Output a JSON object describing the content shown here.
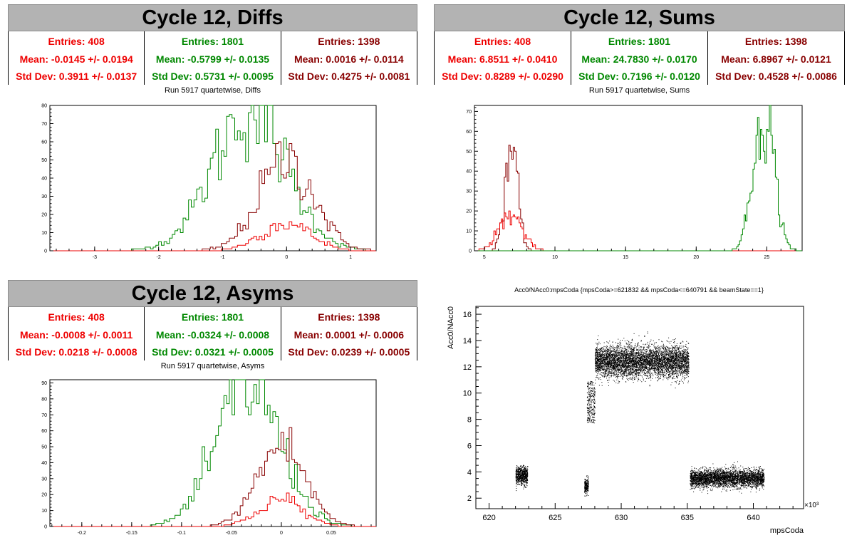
{
  "colors": {
    "red": "#ee0000",
    "green": "#008800",
    "darkred": "#880000",
    "title_bg": "#b3b3b3"
  },
  "panels": {
    "diffs": {
      "title": "Cycle 12, Diffs",
      "subtitle": "Run 5917 quartetwise, Diffs",
      "stats": [
        {
          "color": "red",
          "entries": "Entries: 408",
          "mean": "Mean: -0.0145 +/- 0.0194",
          "std": "Std Dev: 0.3911 +/- 0.0137"
        },
        {
          "color": "green",
          "entries": "Entries: 1801",
          "mean": "Mean: -0.5799 +/- 0.0135",
          "std": "Std Dev: 0.5731 +/- 0.0095"
        },
        {
          "color": "darkred",
          "entries": "Entries: 1398",
          "mean": "Mean: 0.0016 +/- 0.0114",
          "std": "Std Dev: 0.4275 +/- 0.0081"
        }
      ]
    },
    "sums": {
      "title": "Cycle 12, Sums",
      "subtitle": "Run 5917 quartetwise, Sums",
      "stats": [
        {
          "color": "red",
          "entries": "Entries: 408",
          "mean": "Mean: 6.8511 +/- 0.0410",
          "std": "Std Dev: 0.8289 +/- 0.0290"
        },
        {
          "color": "green",
          "entries": "Entries: 1801",
          "mean": "Mean: 24.7830 +/- 0.0170",
          "std": "Std Dev: 0.7196 +/- 0.0120"
        },
        {
          "color": "darkred",
          "entries": "Entries: 1398",
          "mean": "Mean: 6.8967 +/- 0.0121",
          "std": "Std Dev: 0.4528 +/- 0.0086"
        }
      ]
    },
    "asyms": {
      "title": "Cycle 12, Asyms",
      "subtitle": "Run 5917 quartetwise, Asyms",
      "stats": [
        {
          "color": "red",
          "entries": "Entries: 408",
          "mean": "Mean: -0.0008 +/- 0.0011",
          "std": "Std Dev: 0.0218 +/- 0.0008"
        },
        {
          "color": "green",
          "entries": "Entries: 1801",
          "mean": "Mean: -0.0324 +/- 0.0008",
          "std": "Std Dev: 0.0321 +/- 0.0005"
        },
        {
          "color": "darkred",
          "entries": "Entries: 1398",
          "mean": "Mean: 0.0001 +/- 0.0006",
          "std": "Std Dev: 0.0239 +/- 0.0005"
        }
      ]
    },
    "scatter": {
      "subtitle": "Acc0/NAcc0:mpsCoda {mpsCoda>=621832 && mpsCoda<=640791 && beamState==1}",
      "xlabel": "mpsCoda",
      "ylabel": "Acc0/NAcc0",
      "exponent": "×10³"
    }
  },
  "chart_data": [
    {
      "type": "histogram",
      "name": "diffs",
      "xlim": [
        -3.7,
        1.4
      ],
      "ylim": [
        0,
        80
      ],
      "xticks": [
        -3,
        -2,
        -1,
        0,
        1
      ],
      "yticks": [
        0,
        10,
        20,
        30,
        40,
        50,
        60,
        70,
        80
      ],
      "series": [
        {
          "color": "green",
          "mean": -0.5799,
          "std": 0.5731,
          "entries": 1801
        },
        {
          "color": "darkred",
          "mean": 0.0016,
          "std": 0.4275,
          "entries": 1398
        },
        {
          "color": "red",
          "mean": -0.0145,
          "std": 0.3911,
          "entries": 408
        }
      ],
      "peaks": {
        "green": 77,
        "darkred": 50,
        "red": 15
      }
    },
    {
      "type": "histogram",
      "name": "sums",
      "xlim": [
        4.3,
        27.5
      ],
      "ylim": [
        0,
        73
      ],
      "xticks": [
        5,
        10,
        15,
        20,
        25
      ],
      "yticks": [
        0,
        10,
        20,
        30,
        40,
        50,
        60,
        70
      ],
      "series": [
        {
          "color": "darkred",
          "mean": 6.8967,
          "std": 0.4528,
          "entries": 1398
        },
        {
          "color": "red",
          "mean": 6.8511,
          "std": 0.8289,
          "entries": 408
        },
        {
          "color": "green",
          "mean": 24.783,
          "std": 0.7196,
          "entries": 1801
        }
      ],
      "peaks": {
        "darkred": 52,
        "red": 18,
        "green": 72
      }
    },
    {
      "type": "histogram",
      "name": "asyms",
      "xlim": [
        -0.232,
        0.095
      ],
      "ylim": [
        0,
        92
      ],
      "xticks": [
        -0.2,
        -0.15,
        -0.1,
        -0.05,
        0,
        0.05
      ],
      "yticks": [
        0,
        10,
        20,
        30,
        40,
        50,
        60,
        70,
        80,
        90
      ],
      "series": [
        {
          "color": "green",
          "mean": -0.0324,
          "std": 0.0321,
          "entries": 1801
        },
        {
          "color": "darkred",
          "mean": 0.0001,
          "std": 0.0239,
          "entries": 1398
        },
        {
          "color": "red",
          "mean": -0.0008,
          "std": 0.0218,
          "entries": 408
        }
      ],
      "peaks": {
        "green": 88,
        "darkred": 51,
        "red": 17
      }
    },
    {
      "type": "scatter",
      "name": "scatter",
      "xlim": [
        619,
        643.8
      ],
      "ylim": [
        1.2,
        16.6
      ],
      "xticks": [
        620,
        625,
        630,
        635,
        640
      ],
      "yticks": [
        2,
        4,
        6,
        8,
        10,
        12,
        14,
        16
      ],
      "clusters": [
        {
          "x": [
            622.0,
            622.9
          ],
          "y_center": 3.7,
          "y_spread": 0.45,
          "count": 700
        },
        {
          "x": [
            627.2,
            627.5
          ],
          "y_center": 2.9,
          "y_spread": 0.4,
          "count": 220
        },
        {
          "x": [
            627.4,
            628.0
          ],
          "y_center": 9.3,
          "y_spread": 0.9,
          "count": 280
        },
        {
          "x": [
            628.0,
            635.1
          ],
          "y_center": 12.4,
          "y_spread": 0.85,
          "count": 5200
        },
        {
          "x": [
            635.2,
            640.8
          ],
          "y_center": 3.5,
          "y_spread": 0.45,
          "count": 3600
        }
      ]
    }
  ]
}
